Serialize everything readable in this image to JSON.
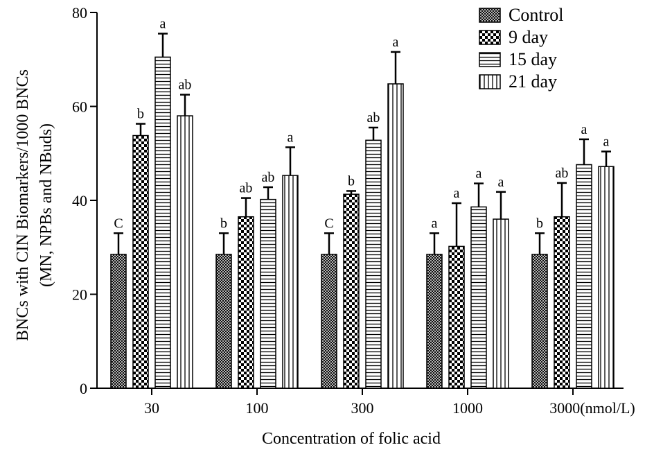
{
  "chart_data": {
    "type": "bar",
    "xlabel": "Concentration of folic acid",
    "ylabel_line1": "BNCs with CIN Biomarkers/1000 BNCs",
    "ylabel_line2": "(MN, NPBs and NBuds)",
    "ylim": [
      0,
      80
    ],
    "yticks": [
      "0",
      "20",
      "40",
      "60",
      "80"
    ],
    "categories": [
      "30",
      "100",
      "300",
      "1000",
      "3000(nmol/L)"
    ],
    "legend_position": "top-right",
    "grid": false,
    "series": [
      {
        "name": "Control",
        "pattern": "crosshatch",
        "values": [
          28.5,
          28.5,
          28.5,
          28.5,
          28.5
        ],
        "errors": [
          4.5,
          4.5,
          4.5,
          4.5,
          4.5
        ],
        "labels": [
          "C",
          "b",
          "C",
          "a",
          "b"
        ]
      },
      {
        "name": "9 day",
        "pattern": "checker",
        "values": [
          53.8,
          36.5,
          41.3,
          30.2,
          36.5
        ],
        "errors": [
          2.5,
          4.0,
          0.7,
          9.2,
          7.2
        ],
        "labels": [
          "b",
          "ab",
          "b",
          "a",
          "ab"
        ]
      },
      {
        "name": "15 day",
        "pattern": "horizontal",
        "values": [
          70.5,
          40.2,
          52.8,
          38.6,
          47.6
        ],
        "errors": [
          5.0,
          2.6,
          2.7,
          5.0,
          5.4
        ],
        "labels": [
          "a",
          "ab",
          "ab",
          "a",
          "a"
        ]
      },
      {
        "name": "21 day",
        "pattern": "vertical",
        "values": [
          58.0,
          45.3,
          64.8,
          36.0,
          47.2
        ],
        "errors": [
          4.5,
          6.0,
          6.8,
          5.8,
          3.2
        ],
        "labels": [
          "ab",
          "a",
          "a",
          "a",
          "a"
        ]
      }
    ]
  }
}
